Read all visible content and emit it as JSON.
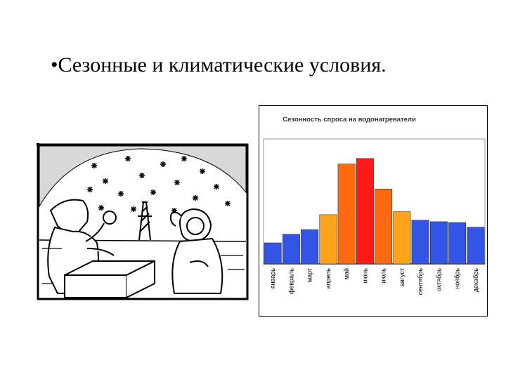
{
  "slide": {
    "title": "•Сезонные и климатические условия."
  },
  "illustration": {
    "icon": "winter-cartoon-icon"
  },
  "chart_data": {
    "type": "bar",
    "title": "Сезонность спроса на водонагреватели",
    "xlabel": "",
    "ylabel": "",
    "ylim": [
      0,
      160
    ],
    "grid": false,
    "legend": "none",
    "categories": [
      "январь",
      "февраль",
      "март",
      "апрель",
      "май",
      "июнь",
      "июль",
      "август",
      "сентябрь",
      "октябрь",
      "ноябрь",
      "декабрь"
    ],
    "values": [
      27,
      38,
      44,
      63,
      128,
      135,
      96,
      67,
      56,
      54,
      53,
      47
    ],
    "colors": [
      "#3355e6",
      "#3355e6",
      "#3355e6",
      "#ffa31a",
      "#ff6a10",
      "#ff1a1a",
      "#ff6a10",
      "#ffa31a",
      "#3355e6",
      "#3355e6",
      "#3355e6",
      "#3355e6"
    ]
  }
}
